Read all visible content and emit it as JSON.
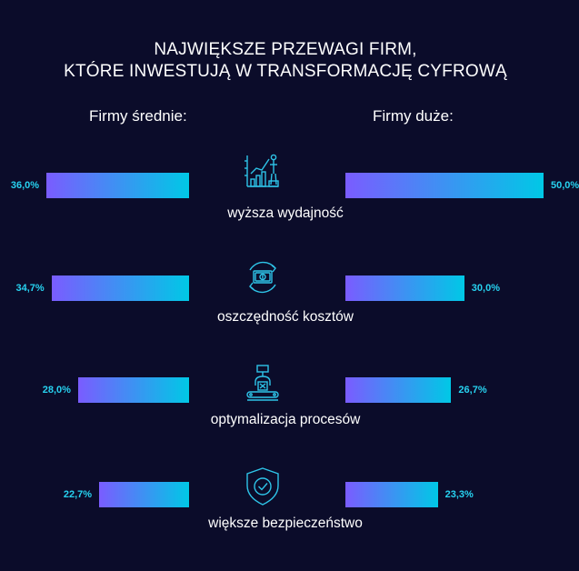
{
  "title_line1": "NAJWIĘKSZE PRZEWAGI FIRM,",
  "title_line2": "KTÓRE INWESTUJĄ W  TRANSFORMACJĘ CYFROWĄ",
  "left_header": "Firmy średnie:",
  "right_header": "Firmy duże:",
  "colors": {
    "background": "#0b0c2a",
    "bar_start": "#7a5cff",
    "bar_end": "#00c8e6",
    "value_text": "#27d2f0",
    "icon": "#2ec4e8"
  },
  "chart_data": {
    "type": "bar",
    "orientation": "horizontal-diverging",
    "title": "NAJWIĘKSZE PRZEWAGI FIRM, KTÓRE INWESTUJĄ W  TRANSFORMACJĘ CYFROWĄ",
    "categories": [
      "wyższa wydajność",
      "oszczędność kosztów",
      "optymalizacja procesów",
      "większe bezpieczeństwo"
    ],
    "icons": [
      "growth-chart-icon",
      "money-cycle-icon",
      "robot-arm-icon",
      "shield-check-icon"
    ],
    "series": [
      {
        "name": "Firmy średnie:",
        "values": [
          36.0,
          34.7,
          28.0,
          22.7
        ],
        "labels": [
          "36,0%",
          "34,7%",
          "28,0%",
          "22,7%"
        ]
      },
      {
        "name": "Firmy duże:",
        "values": [
          50.0,
          30.0,
          26.7,
          23.3
        ],
        "labels": [
          "50,0%",
          "30,0%",
          "26,7%",
          "23,3%"
        ]
      }
    ],
    "unit": "%",
    "xlim": [
      0,
      50
    ]
  }
}
